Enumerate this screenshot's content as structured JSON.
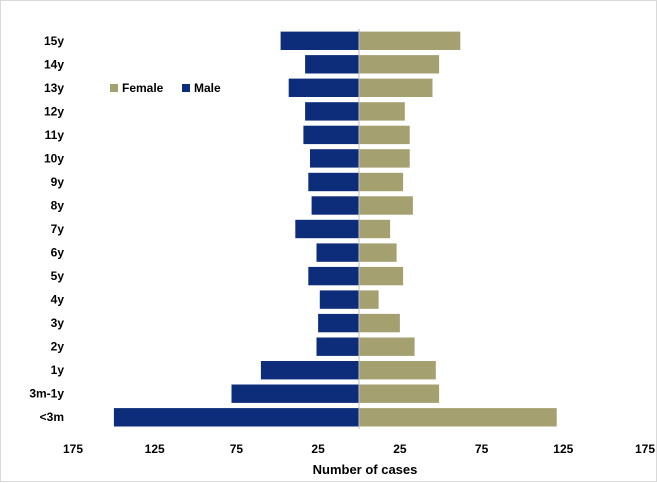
{
  "chart_data": {
    "type": "bar",
    "orientation": "horizontal-butterfly",
    "categories": [
      "15y",
      "14y",
      "13y",
      "12y",
      "11y",
      "10y",
      "9y",
      "8y",
      "7y",
      "6y",
      "5y",
      "4y",
      "3y",
      "2y",
      "1y",
      "3m-1y",
      "<3m"
    ],
    "series": [
      {
        "name": "Female",
        "color": "#a5a070",
        "direction": "right",
        "values": [
          62,
          49,
          45,
          28,
          31,
          31,
          27,
          33,
          19,
          23,
          27,
          12,
          25,
          34,
          47,
          49,
          121
        ]
      },
      {
        "name": "Male",
        "color": "#0d2d7a",
        "direction": "left",
        "values": [
          48,
          33,
          43,
          33,
          34,
          30,
          31,
          29,
          39,
          26,
          31,
          24,
          25,
          26,
          60,
          78,
          150
        ]
      }
    ],
    "xlabel": "Number of cases",
    "xlim": [
      -175,
      175
    ],
    "xticks": [
      -175,
      -125,
      -75,
      -25,
      25,
      75,
      125,
      175
    ],
    "xtick_labels": [
      "175",
      "125",
      "75",
      "25",
      "25",
      "75",
      "125",
      "175"
    ],
    "grid": false,
    "legend_position": "top-left"
  }
}
